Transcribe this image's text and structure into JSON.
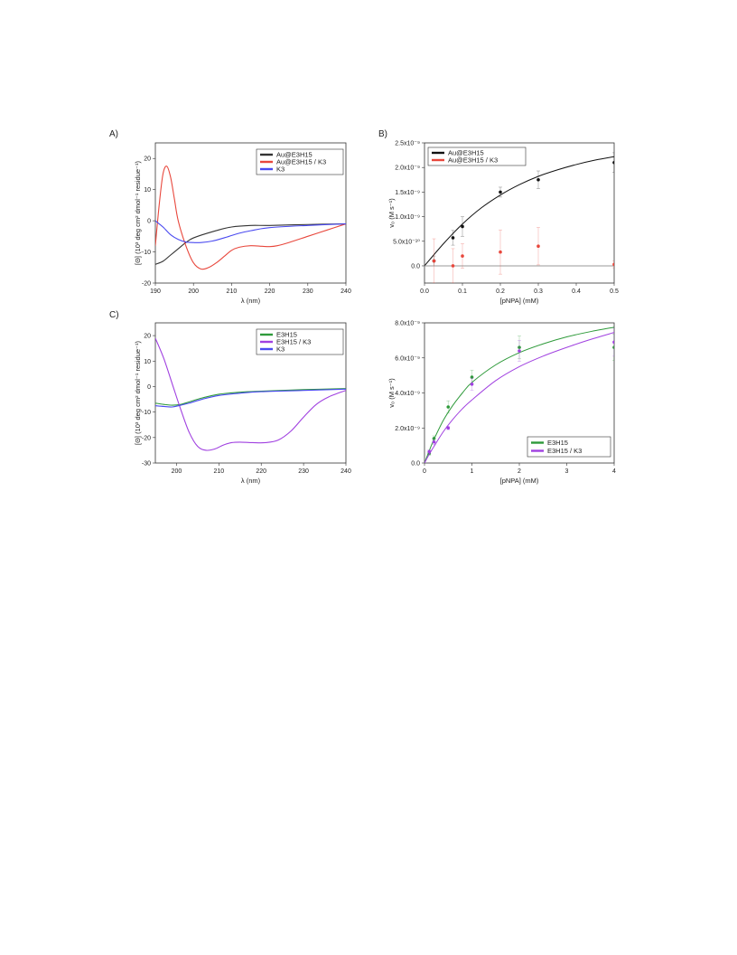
{
  "panels": {
    "A": {
      "letter": "A)"
    },
    "B": {
      "letter": "B)"
    },
    "C": {
      "letter": "C)"
    },
    "D": {
      "letter": ""
    }
  },
  "chart_data": [
    {
      "id": "A",
      "type": "line",
      "title": "",
      "xlabel": "λ (nm)",
      "ylabel": "[Θ] (10³ deg cm² dmol⁻¹ residue⁻¹)",
      "xlim": [
        190,
        240
      ],
      "ylim": [
        -20,
        25
      ],
      "xticks": [
        190,
        200,
        210,
        220,
        230,
        240
      ],
      "yticks": [
        -20,
        -10,
        0,
        10,
        20
      ],
      "legend_position": "top-right",
      "series": [
        {
          "name": "Au@E3H15",
          "color": "#333333",
          "x": [
            190,
            192,
            194,
            196,
            198,
            200,
            205,
            210,
            215,
            220,
            230,
            240
          ],
          "y": [
            -14,
            -13,
            -11,
            -9,
            -7,
            -5.5,
            -3.5,
            -2,
            -1.5,
            -1.5,
            -1.2,
            -1
          ]
        },
        {
          "name": "Au@E3H15 / K3",
          "color": "#e8473c",
          "x": [
            190,
            191,
            192,
            193,
            194,
            195,
            196,
            198,
            200,
            202,
            204,
            206,
            208,
            210,
            212,
            215,
            218,
            220,
            222,
            225,
            230,
            235,
            240
          ],
          "y": [
            -8,
            5,
            15,
            17.5,
            14,
            7,
            0,
            -8,
            -13.5,
            -15.5,
            -15,
            -13.5,
            -11.5,
            -9.5,
            -8.5,
            -8,
            -8.2,
            -8.3,
            -8,
            -7,
            -5,
            -3,
            -1
          ]
        },
        {
          "name": "K3",
          "color": "#4a4af0",
          "x": [
            190,
            192,
            194,
            196,
            198,
            200,
            202,
            205,
            208,
            212,
            215,
            220,
            230,
            240
          ],
          "y": [
            0,
            -2,
            -4.5,
            -6,
            -6.8,
            -7,
            -7,
            -6.5,
            -5.5,
            -4,
            -3.2,
            -2.2,
            -1.5,
            -1
          ]
        }
      ]
    },
    {
      "id": "B",
      "type": "scatter",
      "title": "",
      "xlabel": "[pNPA] (mM)",
      "ylabel": "v₀ (M s⁻¹)",
      "xlim": [
        0,
        0.5
      ],
      "ylim": [
        -3.5e-10,
        2.5e-09
      ],
      "xticks": [
        "0.0",
        "0.1",
        "0.2",
        "0.3",
        "0.4",
        "0.5"
      ],
      "yticks": [
        "0.0",
        "5.0x10⁻¹⁰",
        "1.0x10⁻⁹",
        "1.5x10⁻⁹",
        "2.0x10⁻⁹",
        "2.5x10⁻⁹"
      ],
      "ytick_values": [
        0,
        5e-10,
        1e-09,
        1.5e-09,
        2e-09,
        2.5e-09
      ],
      "xtick_values": [
        0,
        0.1,
        0.2,
        0.3,
        0.4,
        0.5
      ],
      "legend_position": "top-left",
      "series": [
        {
          "name": "Au@E3H15",
          "color": "#111111",
          "x": [
            0.025,
            0.075,
            0.1,
            0.2,
            0.3,
            0.5
          ],
          "y": [
            1e-10,
            5.7e-10,
            8e-10,
            1.5e-09,
            1.75e-09,
            2.1e-09
          ],
          "err": [
            1e-10,
            1.5e-10,
            2e-10,
            1e-10,
            1.8e-10,
            2e-10
          ],
          "fit": {
            "x": [
              0.0,
              0.05,
              0.1,
              0.15,
              0.2,
              0.25,
              0.3,
              0.35,
              0.4,
              0.45,
              0.5
            ],
            "y": [
              0,
              4.5e-10,
              8.5e-10,
              1.18e-09,
              1.44e-09,
              1.65e-09,
              1.82e-09,
              1.95e-09,
              2.06e-09,
              2.15e-09,
              2.22e-09
            ]
          }
        },
        {
          "name": "Au@E3H15 / K3",
          "color": "#e8473c",
          "x": [
            0.025,
            0.075,
            0.1,
            0.2,
            0.3,
            0.5
          ],
          "y": [
            1e-10,
            0.0,
            2e-10,
            2.8e-10,
            4e-10,
            3e-11
          ],
          "err": [
            4.5e-10,
            3.5e-10,
            2.5e-10,
            4.5e-10,
            3.8e-10,
            7e-11
          ],
          "fit": {
            "x": [
              0.0,
              0.5
            ],
            "y": [
              0,
              0
            ]
          }
        }
      ]
    },
    {
      "id": "C",
      "type": "line",
      "title": "",
      "xlabel": "λ (nm)",
      "ylabel": "[Θ] (10³ deg cm² dmol⁻¹ residue⁻¹)",
      "xlim": [
        195,
        240
      ],
      "ylim": [
        -30,
        25
      ],
      "xticks": [
        200,
        210,
        220,
        230,
        240
      ],
      "yticks": [
        -30,
        -20,
        -10,
        0,
        10,
        20
      ],
      "legend_position": "top-right",
      "series": [
        {
          "name": "E3H15",
          "color": "#2e9a3a",
          "x": [
            195,
            197,
            199,
            201,
            203,
            206,
            210,
            215,
            220,
            230,
            240
          ],
          "y": [
            -6.5,
            -7,
            -7.3,
            -7,
            -6,
            -4.5,
            -3,
            -2.2,
            -1.8,
            -1.2,
            -0.8
          ]
        },
        {
          "name": "E3H15 / K3",
          "color": "#a040e0",
          "x": [
            195,
            197,
            199,
            201,
            203,
            205,
            207,
            209,
            211,
            213,
            215,
            218,
            221,
            224,
            227,
            230,
            233,
            236,
            240
          ],
          "y": [
            19,
            11,
            1,
            -9,
            -18,
            -23.5,
            -25,
            -24.5,
            -23,
            -22,
            -21.8,
            -22,
            -22,
            -21,
            -17.5,
            -12,
            -7,
            -4,
            -1.5
          ]
        },
        {
          "name": "K3",
          "color": "#4a4af0",
          "x": [
            195,
            197,
            199,
            201,
            203,
            206,
            210,
            215,
            220,
            230,
            240
          ],
          "y": [
            -7.5,
            -7.8,
            -8,
            -7.3,
            -6.5,
            -5,
            -3.5,
            -2.6,
            -2,
            -1.5,
            -1
          ]
        }
      ]
    },
    {
      "id": "D",
      "type": "scatter",
      "title": "",
      "xlabel": "[pNPA] (mM)",
      "ylabel": "v₀ (M s⁻¹)",
      "xlim": [
        0,
        4
      ],
      "ylim": [
        0,
        8e-09
      ],
      "xticks": [
        "0",
        "1",
        "2",
        "3",
        "4"
      ],
      "xtick_values": [
        0,
        1,
        2,
        3,
        4
      ],
      "yticks": [
        "0.0",
        "2.0x10⁻⁹",
        "4.0x10⁻⁹",
        "6.0x10⁻⁹",
        "8.0x10⁻⁹"
      ],
      "ytick_values": [
        0,
        2e-09,
        4e-09,
        6e-09,
        8e-09
      ],
      "legend_position": "bottom-right",
      "series": [
        {
          "name": "E3H15",
          "color": "#2e9a3a",
          "x": [
            0.1,
            0.2,
            0.5,
            1.0,
            2.0,
            4.0
          ],
          "y": [
            5.5e-10,
            1.4e-09,
            3.2e-09,
            4.9e-09,
            6.6e-09,
            6.6e-09
          ],
          "err": [
            1e-10,
            1.5e-10,
            3.5e-10,
            4e-10,
            6.5e-10,
            7.5e-10
          ],
          "fit": {
            "x": [
              0,
              0.1,
              0.2,
              0.4,
              0.6,
              0.8,
              1.0,
              1.5,
              2.0,
              2.5,
              3.0,
              3.5,
              4.0
            ],
            "y": [
              0,
              7e-10,
              1.35e-09,
              2.45e-09,
              3.3e-09,
              4e-09,
              4.6e-09,
              5.6e-09,
              6.3e-09,
              6.8e-09,
              7.2e-09,
              7.5e-09,
              7.75e-09
            ]
          }
        },
        {
          "name": "E3H15 / K3",
          "color": "#a040e0",
          "x": [
            0.1,
            0.2,
            0.5,
            1.0,
            2.0,
            4.0
          ],
          "y": [
            6.5e-10,
            1.2e-09,
            2e-09,
            4.5e-09,
            6.4e-09,
            6.9e-09
          ],
          "err": [
            1e-10,
            1.5e-10,
            1e-10,
            3.5e-10,
            6e-10,
            8e-10
          ],
          "fit": {
            "x": [
              0,
              0.1,
              0.2,
              0.4,
              0.6,
              0.8,
              1.0,
              1.5,
              2.0,
              2.5,
              3.0,
              3.5,
              4.0
            ],
            "y": [
              0,
              5e-10,
              9.5e-10,
              1.8e-09,
              2.5e-09,
              3.1e-09,
              3.6e-09,
              4.7e-09,
              5.5e-09,
              6.1e-09,
              6.6e-09,
              7.05e-09,
              7.45e-09
            ]
          }
        }
      ]
    }
  ]
}
